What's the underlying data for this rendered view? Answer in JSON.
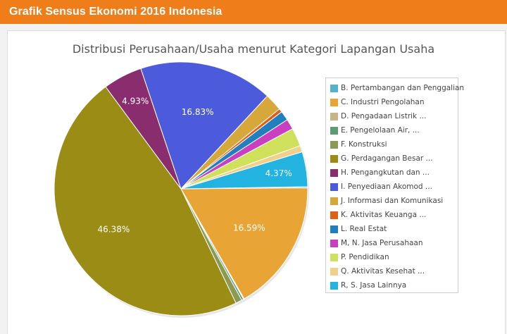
{
  "header": {
    "title": "Grafik Sensus Ekonomi 2016 Indonesia"
  },
  "chart_data": {
    "type": "pie",
    "title": "Distribusi Perusahaan/Usaha menurut Kategori Lapangan Usaha",
    "legend_position": "right",
    "slices": [
      {
        "label": "B. Pertambangan dan Penggalian",
        "value": 0.15,
        "color": "#54b3c9",
        "data_label": ""
      },
      {
        "label": "C. Industri Pengolahan",
        "value": 16.59,
        "color": "#e8a535",
        "data_label": "16.59%"
      },
      {
        "label": "D. Pengadaan Listrik ...",
        "value": 0.1,
        "color": "#c9b38a",
        "data_label": ""
      },
      {
        "label": "E. Pengelolaan Air, ...",
        "value": 0.25,
        "color": "#5e9a78",
        "data_label": ""
      },
      {
        "label": "F. Konstruksi",
        "value": 0.8,
        "color": "#8b9a52",
        "data_label": ""
      },
      {
        "label": "G. Perdagangan Besar ...",
        "value": 46.38,
        "color": "#9a8c14",
        "data_label": "46.38%"
      },
      {
        "label": "H. Pengangkutan dan ...",
        "value": 4.93,
        "color": "#8a2d6e",
        "data_label": "4.93%"
      },
      {
        "label": "I. Penyediaan Akomod ...",
        "value": 16.83,
        "color": "#4c5bdc",
        "data_label": "16.83%"
      },
      {
        "label": "J. Informasi dan Komunikasi",
        "value": 2.2,
        "color": "#d6a83a",
        "data_label": ""
      },
      {
        "label": "K. Aktivitas Keuanga ...",
        "value": 0.45,
        "color": "#e0601a",
        "data_label": ""
      },
      {
        "label": "L. Real Estat",
        "value": 1.2,
        "color": "#1f7fbf",
        "data_label": ""
      },
      {
        "label": "M, N. Jasa Perusahaan",
        "value": 1.3,
        "color": "#c93fbf",
        "data_label": ""
      },
      {
        "label": "P. Pendidikan",
        "value": 2.3,
        "color": "#cfe05a",
        "data_label": ""
      },
      {
        "label": "Q. Aktivitas Kesehat ...",
        "value": 0.8,
        "color": "#f0d08a",
        "data_label": ""
      },
      {
        "label": "R, S. Jasa Lainnya",
        "value": 4.37,
        "color": "#22b3e0",
        "data_label": "4.37%"
      }
    ]
  }
}
